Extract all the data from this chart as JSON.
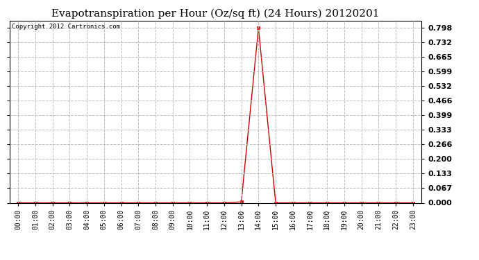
{
  "title": "Evapotranspiration per Hour (Oz/sq ft) (24 Hours) 20120201",
  "copyright_text": "Copyright 2012 Cartronics.com",
  "hours": [
    0,
    1,
    2,
    3,
    4,
    5,
    6,
    7,
    8,
    9,
    10,
    11,
    12,
    13,
    14,
    15,
    16,
    17,
    18,
    19,
    20,
    21,
    22,
    23
  ],
  "hour_labels": [
    "00:00",
    "01:00",
    "02:00",
    "03:00",
    "04:00",
    "05:00",
    "06:00",
    "07:00",
    "08:00",
    "09:00",
    "10:00",
    "11:00",
    "12:00",
    "13:00",
    "14:00",
    "15:00",
    "16:00",
    "17:00",
    "18:00",
    "19:00",
    "20:00",
    "21:00",
    "22:00",
    "23:00"
  ],
  "values": [
    0.0,
    0.0,
    0.0,
    0.0,
    0.0,
    0.0,
    0.0,
    0.0,
    0.0,
    0.0,
    0.0,
    0.0,
    0.0,
    0.004,
    0.798,
    0.0,
    0.0,
    0.0,
    0.0,
    0.0,
    0.0,
    0.0,
    0.0,
    0.0
  ],
  "line_color": "#cc0000",
  "marker": "s",
  "marker_size": 2.5,
  "ylim": [
    0.0,
    0.831
  ],
  "yticks": [
    0.0,
    0.067,
    0.133,
    0.2,
    0.266,
    0.333,
    0.399,
    0.466,
    0.532,
    0.599,
    0.665,
    0.732,
    0.798
  ],
  "grid_color": "#bbbbbb",
  "grid_linestyle": "--",
  "background_color": "#ffffff",
  "title_fontsize": 11,
  "copyright_fontsize": 6.5,
  "tick_fontsize": 7,
  "ytick_fontsize": 8
}
